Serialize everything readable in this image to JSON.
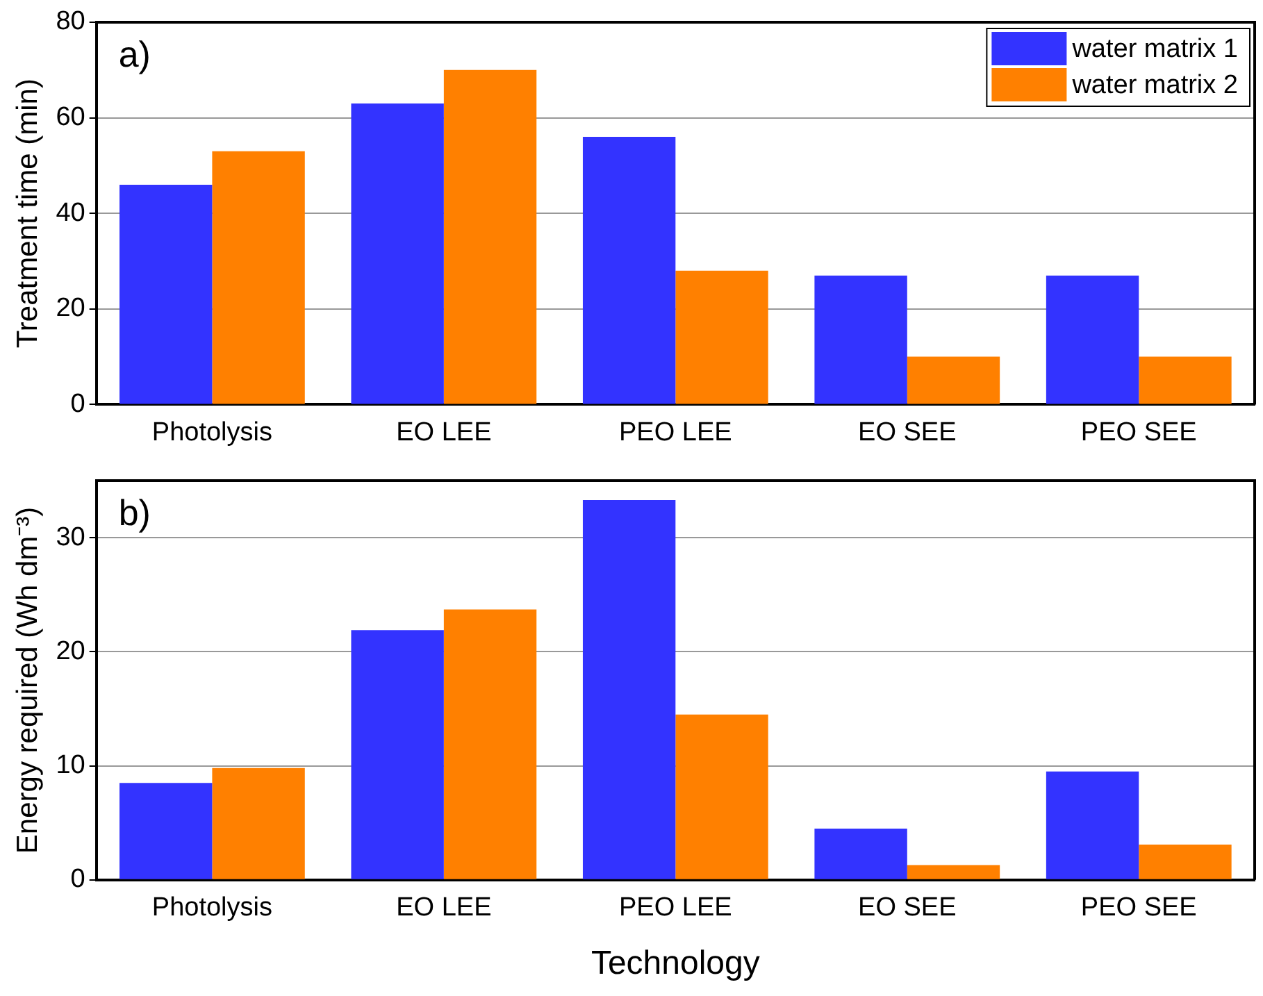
{
  "chart_data": [
    {
      "type": "bar",
      "ylabel": "Treatment time (min)",
      "categories": [
        "Photolysis",
        "EO LEE",
        "PEO LEE",
        "EO SEE",
        "PEO SEE"
      ],
      "series": [
        {
          "name": "water matrix 1",
          "color": "#3333ff",
          "values": [
            46,
            63,
            56,
            27,
            27
          ]
        },
        {
          "name": "water matrix 2",
          "color": "#ff8000",
          "values": [
            53,
            70,
            28,
            10,
            10
          ]
        }
      ],
      "ylim": [
        0,
        80
      ],
      "yticks": [
        0,
        20,
        40,
        60,
        80
      ],
      "grid": "y",
      "legend": "top right",
      "annotations": [
        "a)"
      ]
    },
    {
      "type": "bar",
      "ylabel": "Energy required (Wh dm⁻³)",
      "xlabel": "Technology",
      "categories": [
        "Photolysis",
        "EO LEE",
        "PEO LEE",
        "EO SEE",
        "PEO SEE"
      ],
      "series": [
        {
          "color": "#3333ff",
          "values": [
            8.5,
            21.9,
            33.3,
            4.5,
            9.5
          ]
        },
        {
          "color": "#ff8000",
          "values": [
            9.8,
            23.7,
            14.5,
            1.3,
            3.1
          ]
        }
      ],
      "ylim": [
        0,
        35
      ],
      "yticks": [
        0,
        10,
        20,
        30
      ],
      "grid": "y",
      "annotations": [
        "b)"
      ]
    }
  ]
}
